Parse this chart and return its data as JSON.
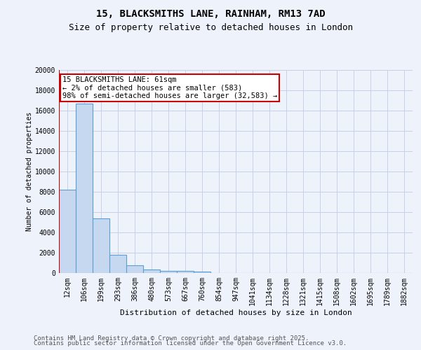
{
  "title1": "15, BLACKSMITHS LANE, RAINHAM, RM13 7AD",
  "title2": "Size of property relative to detached houses in London",
  "xlabel": "Distribution of detached houses by size in London",
  "ylabel": "Number of detached properties",
  "categories": [
    "12sqm",
    "106sqm",
    "199sqm",
    "293sqm",
    "386sqm",
    "480sqm",
    "573sqm",
    "667sqm",
    "760sqm",
    "854sqm",
    "947sqm",
    "1041sqm",
    "1134sqm",
    "1228sqm",
    "1321sqm",
    "1415sqm",
    "1508sqm",
    "1602sqm",
    "1695sqm",
    "1789sqm",
    "1882sqm"
  ],
  "values": [
    8200,
    16700,
    5400,
    1800,
    750,
    320,
    220,
    190,
    120,
    0,
    0,
    0,
    0,
    0,
    0,
    0,
    0,
    0,
    0,
    0,
    0
  ],
  "bar_color": "#c5d8f0",
  "bar_edge_color": "#5a9fd4",
  "marker_color": "#cc0000",
  "annotation_text": "15 BLACKSMITHS LANE: 61sqm\n← 2% of detached houses are smaller (583)\n98% of semi-detached houses are larger (32,583) →",
  "annotation_box_color": "#ffffff",
  "annotation_box_edge_color": "#cc0000",
  "ylim": [
    0,
    20000
  ],
  "yticks": [
    0,
    2000,
    4000,
    6000,
    8000,
    10000,
    12000,
    14000,
    16000,
    18000,
    20000
  ],
  "footer1": "Contains HM Land Registry data © Crown copyright and database right 2025.",
  "footer2": "Contains public sector information licensed under the Open Government Licence v3.0.",
  "background_color": "#eef2fb",
  "grid_color": "#c8d0e8",
  "title_fontsize": 10,
  "subtitle_fontsize": 9,
  "tick_fontsize": 7,
  "ylabel_fontsize": 7,
  "xlabel_fontsize": 8,
  "annotation_fontsize": 7.5,
  "footer_fontsize": 6.5
}
